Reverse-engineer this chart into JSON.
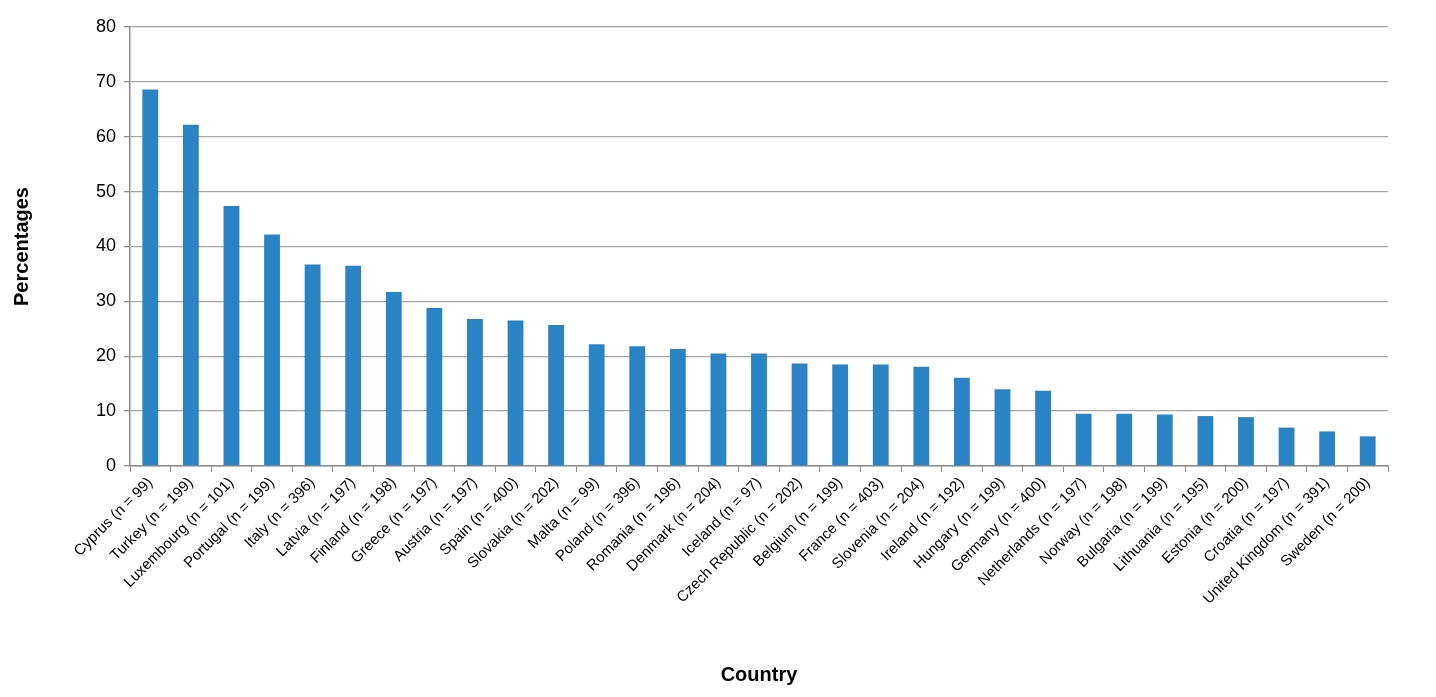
{
  "chart_data": {
    "type": "bar",
    "xlabel": "Country",
    "ylabel": "Percentages",
    "categories": [
      "Cyprus (n = 99)",
      "Turkey (n = 199)",
      "Luxembourg (n = 101)",
      "Portugal (n = 199)",
      "Italy (n = 396)",
      "Latvia (n = 197)",
      "Finland (n = 198)",
      "Greece (n = 197)",
      "Austria (n = 197)",
      "Spain (n = 400)",
      "Slovakia (n = 202)",
      "Malta (n = 99)",
      "Poland (n = 396)",
      "Romania (n = 196)",
      "Denmark (n = 204)",
      "Iceland (n = 97)",
      "Czech Republic (n = 202)",
      "Belgium (n = 199)",
      "France (n = 403)",
      "Slovenia (n = 204)",
      "Ireland (n = 192)",
      "Hungary (n = 199)",
      "Germany (n = 400)",
      "Netherlands (n = 197)",
      "Norway (n = 198)",
      "Bulgaria (n = 199)",
      "Lithuania (n = 195)",
      "Estonia (n = 200)",
      "Croatia (n = 197)",
      "United Kingdom (n = 391)",
      "Sweden (n = 200)"
    ],
    "values": [
      68.6,
      62.2,
      47.4,
      42.2,
      36.7,
      36.5,
      31.7,
      28.8,
      26.8,
      26.5,
      25.7,
      22.2,
      21.8,
      21.3,
      20.5,
      20.5,
      18.7,
      18.5,
      18.5,
      18.1,
      16.1,
      14.0,
      13.7,
      9.5,
      9.5,
      9.4,
      9.1,
      8.9,
      7.0,
      6.3,
      5.4
    ],
    "color": "#2a83c5",
    "ylim": [
      0,
      80
    ],
    "yticks": [
      0,
      10,
      20,
      30,
      40,
      50,
      60,
      70,
      80
    ],
    "grid": "y"
  }
}
